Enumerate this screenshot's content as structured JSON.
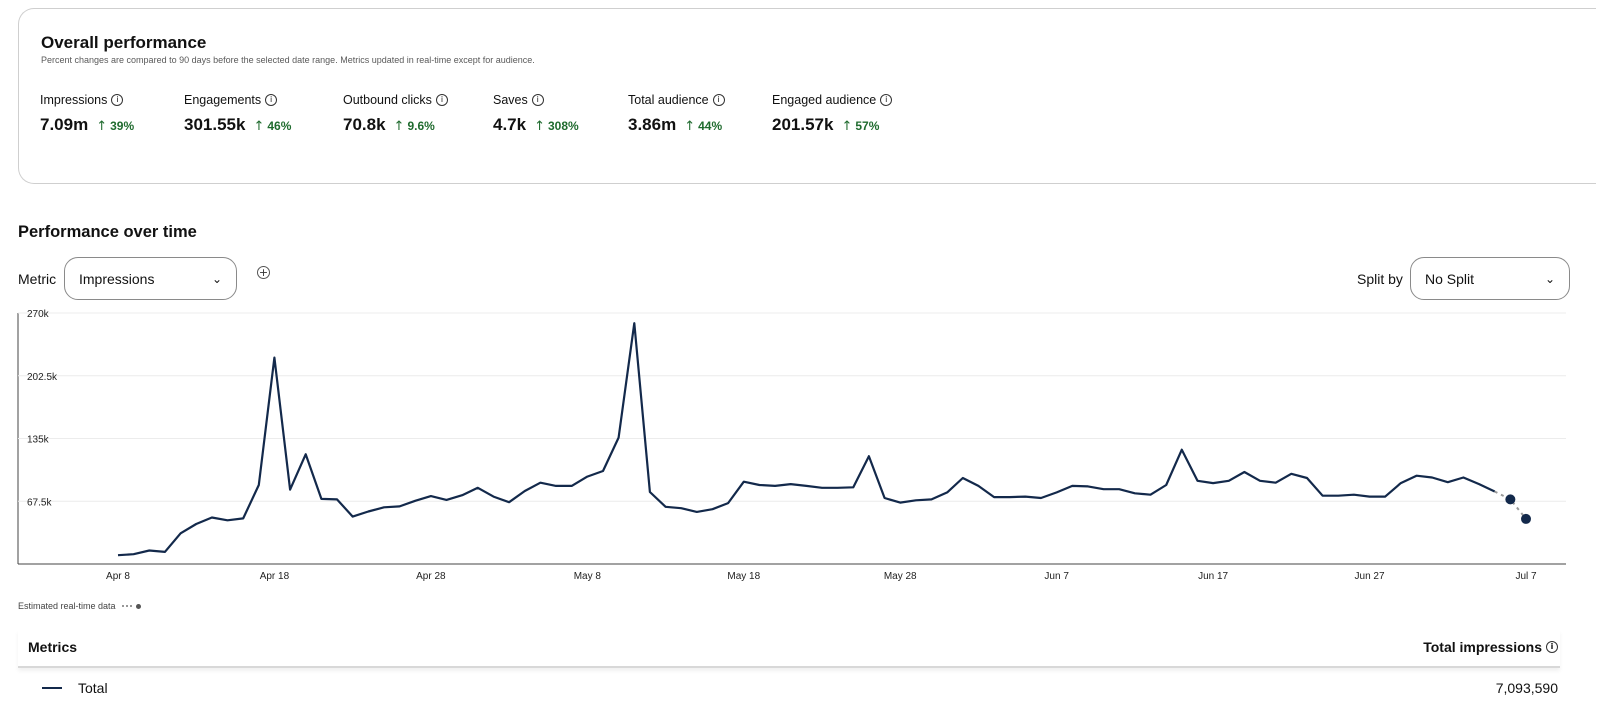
{
  "overall": {
    "title": "Overall performance",
    "subtitle": "Percent changes are compared to 90 days before the selected date range. Metrics updated in real-time except for audience.",
    "metrics": [
      {
        "label": "Impressions",
        "value": "7.09m",
        "change": "39%"
      },
      {
        "label": "Engagements",
        "value": "301.55k",
        "change": "46%"
      },
      {
        "label": "Outbound clicks",
        "value": "70.8k",
        "change": "9.6%"
      },
      {
        "label": "Saves",
        "value": "4.7k",
        "change": "308%"
      },
      {
        "label": "Total audience",
        "value": "3.86m",
        "change": "44%"
      },
      {
        "label": "Engaged audience",
        "value": "201.57k",
        "change": "57%"
      }
    ]
  },
  "time": {
    "title": "Performance over time",
    "metric_label": "Metric",
    "metric_value": "Impressions",
    "split_label": "Split by",
    "split_value": "No Split"
  },
  "legend_note": "Estimated real-time data",
  "table": {
    "header_left": "Metrics",
    "header_right": "Total impressions",
    "rows": [
      {
        "label": "Total",
        "value": "7,093,590"
      }
    ]
  },
  "colors": {
    "line": "#13294b",
    "positive": "#1f6b2e"
  },
  "chart_data": {
    "type": "line",
    "ylim": [
      0,
      270000
    ],
    "y_ticks": [
      "67.5k",
      "135k",
      "202.5k",
      "270k"
    ],
    "y_tick_values": [
      67500,
      135000,
      202500,
      270000
    ],
    "x_tick_labels": [
      "Apr 8",
      "Apr 18",
      "Apr 28",
      "May 8",
      "May 18",
      "May 28",
      "Jun 7",
      "Jun 17",
      "Jun 27",
      "Jul 7"
    ],
    "x_tick_index": [
      0,
      10,
      20,
      30,
      40,
      50,
      60,
      70,
      80,
      90
    ],
    "series": [
      {
        "values": [
          9500,
          10500,
          14500,
          13000,
          33000,
          43000,
          50000,
          47000,
          49000,
          85000,
          222000,
          80000,
          118000,
          70000,
          69500,
          51000,
          56500,
          61000,
          62000,
          68000,
          73000,
          69000,
          74000,
          82000,
          72500,
          66500,
          78500,
          87500,
          84000,
          84000,
          94000,
          100000,
          136000,
          259000,
          77500,
          61500,
          60000,
          56000,
          59000,
          65500,
          88500,
          85000,
          84000,
          86000,
          84000,
          82000,
          82000,
          82500,
          116000,
          71000,
          66000,
          68500,
          69500,
          77000,
          92500,
          84000,
          72000,
          72000,
          72500,
          71000,
          77000,
          84000,
          83500,
          80500,
          80500,
          76000,
          74500,
          85000,
          123000,
          89500,
          87000,
          89500,
          99000,
          89500,
          87500,
          97000,
          92500,
          73500,
          73500,
          74500,
          72500,
          72500,
          87000,
          95000,
          93000,
          88000,
          93000,
          86000,
          78000
        ],
        "estimated": [
          {
            "index": 89,
            "value": 69500
          },
          {
            "index": 90,
            "value": 48500
          }
        ]
      }
    ]
  }
}
